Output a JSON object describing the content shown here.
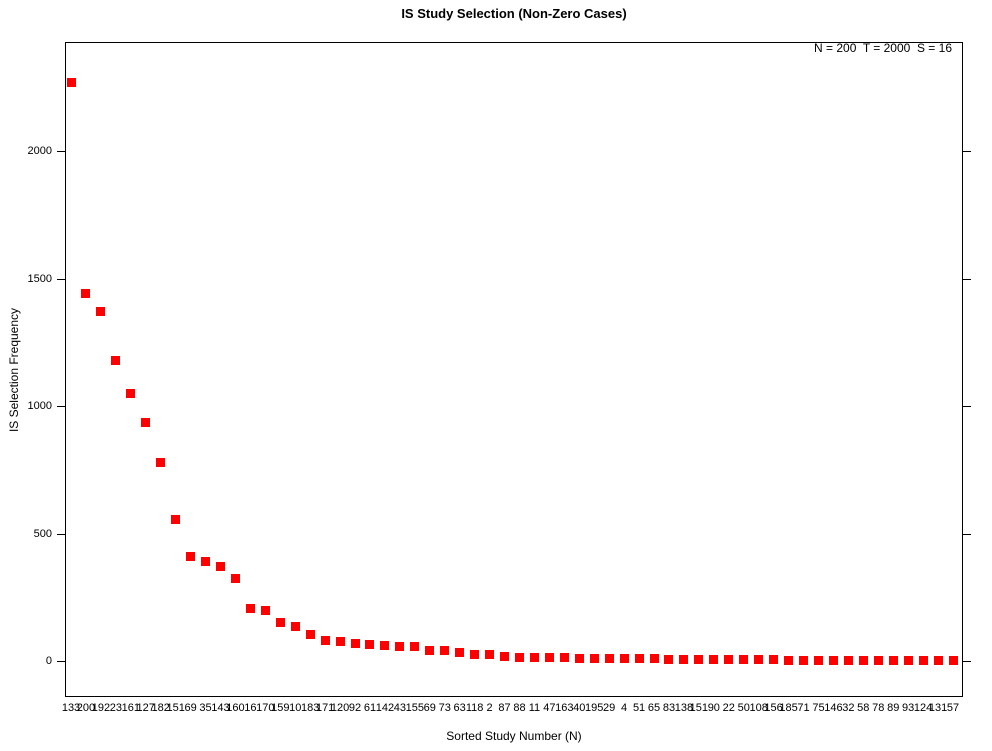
{
  "title": "IS Study Selection (Non-Zero Cases)",
  "annotation": "N = 200  T = 2000  S = 16",
  "chart_data": {
    "type": "scatter",
    "title": "IS Study Selection (Non-Zero Cases)",
    "xlabel": "Sorted Study Number (N)",
    "ylabel": "IS Selection Frequency",
    "marker": "filled-square",
    "marker_color": "#FF0000",
    "grid": false,
    "ylim": [
      0,
      2300
    ],
    "yticks": [
      0,
      500,
      1000,
      1500,
      2000
    ],
    "categories": [
      "133",
      "200",
      "192",
      "23",
      "161",
      "127",
      "182",
      "151",
      "69",
      "35",
      "143",
      "160",
      "16",
      "170",
      "159",
      "10",
      "183",
      "171",
      "120",
      "92",
      "61",
      "142",
      "43",
      "155",
      "69",
      "73",
      "63",
      "118",
      "2",
      "87",
      "88",
      "11",
      "47",
      "163",
      "40",
      "195",
      "29",
      "4",
      "51",
      "65",
      "83",
      "138",
      "151",
      "90",
      "22",
      "50",
      "108",
      "156",
      "185",
      "71",
      "75",
      "146",
      "32",
      "58",
      "78",
      "89",
      "93",
      "124",
      "131",
      "57"
    ],
    "values": [
      2270,
      1440,
      1370,
      1180,
      1050,
      935,
      780,
      555,
      410,
      390,
      370,
      325,
      205,
      200,
      150,
      135,
      105,
      82,
      77,
      69,
      64,
      61,
      56,
      55,
      43,
      40,
      34,
      25,
      24,
      17,
      15,
      14,
      13,
      12,
      11,
      10,
      9,
      9,
      8,
      8,
      7,
      7,
      6,
      6,
      5,
      5,
      4,
      4,
      3,
      3,
      3,
      2,
      2,
      2,
      2,
      1,
      1,
      1,
      1,
      1
    ]
  }
}
